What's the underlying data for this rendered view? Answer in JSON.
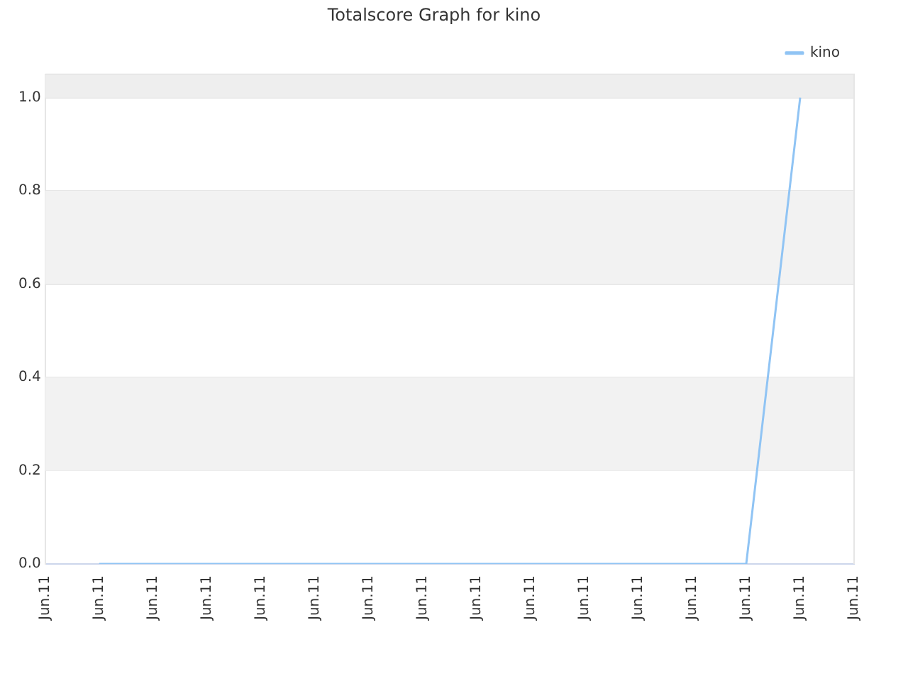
{
  "chart_data": {
    "type": "line",
    "title": "Totalscore Graph for kino",
    "categories": [
      "Jun.11",
      "Jun.11",
      "Jun.11",
      "Jun.11",
      "Jun.11",
      "Jun.11",
      "Jun.11",
      "Jun.11",
      "Jun.11",
      "Jun.11",
      "Jun.11",
      "Jun.11",
      "Jun.11",
      "Jun.11",
      "Jun.11",
      "Jun.11"
    ],
    "ylim": [
      0,
      1.05
    ],
    "yticks": [
      {
        "value": 0,
        "label": "0.0"
      },
      {
        "value": 0.2,
        "label": "0.2"
      },
      {
        "value": 0.4,
        "label": "0.4"
      },
      {
        "value": 0.6,
        "label": "0.6"
      },
      {
        "value": 0.8,
        "label": "0.8"
      },
      {
        "value": 1,
        "label": "1.0"
      }
    ],
    "series": [
      {
        "name": "kino",
        "color": "#90c4f4",
        "values": [
          null,
          0,
          0,
          0,
          0,
          0,
          0,
          0,
          0,
          0,
          0,
          0,
          0,
          0,
          1,
          null
        ]
      }
    ],
    "bands": [
      {
        "axis": "y",
        "from": 0.2,
        "to": 0.4,
        "color": "#f2f2f2"
      },
      {
        "axis": "y",
        "from": 0.6,
        "to": 0.8,
        "color": "#f2f2f2"
      },
      {
        "axis": "y",
        "from": 1.0,
        "to": 1.05,
        "color": "#eeeeee"
      }
    ],
    "grid": "y",
    "legend": "top right",
    "marker": "none",
    "line_style": "solid"
  }
}
